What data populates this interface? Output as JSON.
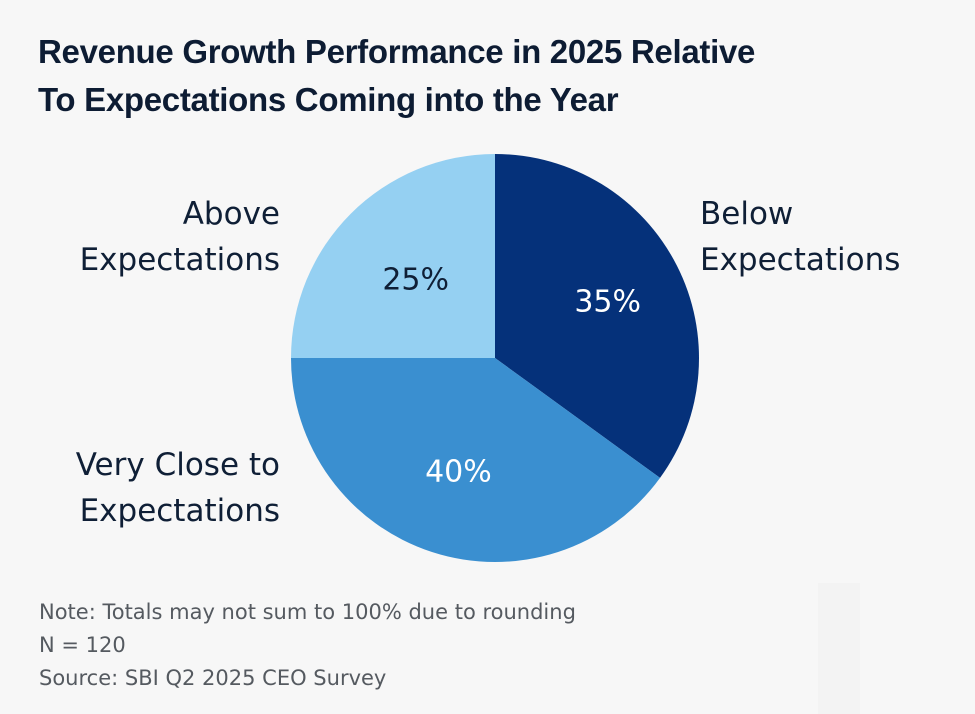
{
  "chart_data": {
    "type": "pie",
    "title": "Revenue Growth Performance in 2025 Relative To Expectations Coming into the Year",
    "title_lines": [
      "Revenue Growth Performance in 2025 Relative",
      "To Expectations Coming into the Year"
    ],
    "start": "12 o'clock, clockwise",
    "slices": [
      {
        "label": "Below Expectations",
        "label_lines": [
          "Below",
          "Expectations"
        ],
        "value": 35,
        "value_label": "35%",
        "color": "#05317a",
        "text_color": "#ffffff",
        "label_side": "right"
      },
      {
        "label": "Very Close to Expectations",
        "label_lines": [
          "Very Close to",
          "Expectations"
        ],
        "value": 40,
        "value_label": "40%",
        "color": "#3a8fd0",
        "text_color": "#ffffff",
        "label_side": "left-bottom"
      },
      {
        "label": "Above Expectations",
        "label_lines": [
          "Above",
          "Expectations"
        ],
        "value": 25,
        "value_label": "25%",
        "color": "#95d0f2",
        "text_color": "#0f1f36",
        "label_side": "left-top"
      }
    ]
  },
  "notes": [
    "Note: Totals may not sum to 100% due to rounding",
    "N = 120",
    "Source: SBI Q2 2025 CEO Survey"
  ]
}
